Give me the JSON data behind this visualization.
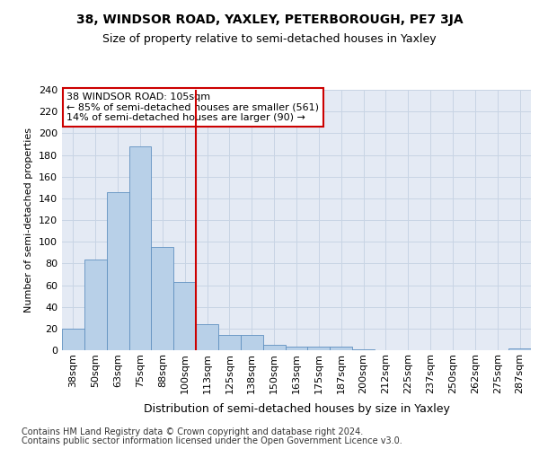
{
  "title": "38, WINDSOR ROAD, YAXLEY, PETERBOROUGH, PE7 3JA",
  "subtitle": "Size of property relative to semi-detached houses in Yaxley",
  "xlabel": "Distribution of semi-detached houses by size in Yaxley",
  "ylabel": "Number of semi-detached properties",
  "categories": [
    "38sqm",
    "50sqm",
    "63sqm",
    "75sqm",
    "88sqm",
    "100sqm",
    "113sqm",
    "125sqm",
    "138sqm",
    "150sqm",
    "163sqm",
    "175sqm",
    "187sqm",
    "200sqm",
    "212sqm",
    "225sqm",
    "237sqm",
    "250sqm",
    "262sqm",
    "275sqm",
    "287sqm"
  ],
  "values": [
    20,
    84,
    146,
    188,
    95,
    63,
    24,
    14,
    14,
    5,
    3,
    3,
    3,
    1,
    0,
    0,
    0,
    0,
    0,
    0,
    2
  ],
  "bar_color": "#b8d0e8",
  "bar_edge_color": "#6090c0",
  "vline_x_index": 6,
  "vline_color": "#cc0000",
  "annotation_text": "38 WINDSOR ROAD: 105sqm\n← 85% of semi-detached houses are smaller (561)\n14% of semi-detached houses are larger (90) →",
  "annotation_box_color": "#ffffff",
  "annotation_box_edge_color": "#cc0000",
  "ylim": [
    0,
    240
  ],
  "yticks": [
    0,
    20,
    40,
    60,
    80,
    100,
    120,
    140,
    160,
    180,
    200,
    220,
    240
  ],
  "grid_color": "#c8d4e4",
  "bg_color": "#e4eaf4",
  "footer_line1": "Contains HM Land Registry data © Crown copyright and database right 2024.",
  "footer_line2": "Contains public sector information licensed under the Open Government Licence v3.0.",
  "title_fontsize": 10,
  "subtitle_fontsize": 9,
  "xlabel_fontsize": 9,
  "ylabel_fontsize": 8,
  "tick_fontsize": 8,
  "footer_fontsize": 7
}
